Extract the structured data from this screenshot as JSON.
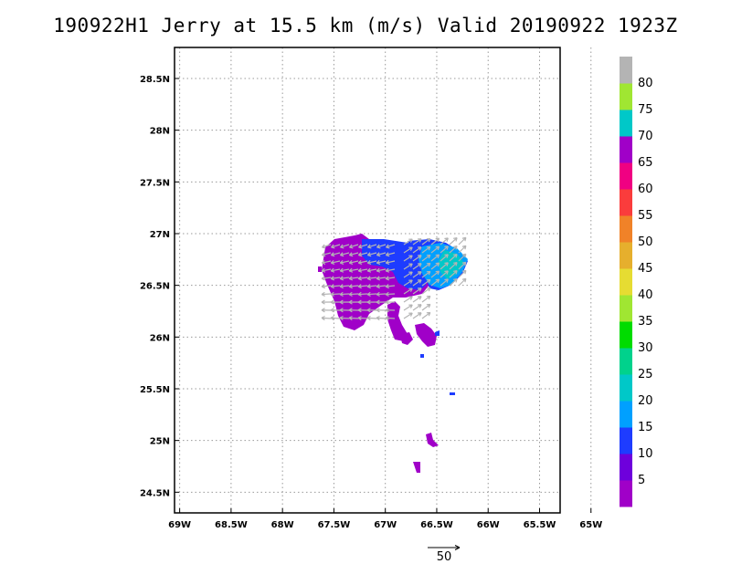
{
  "title": "190922H1  Jerry at 15.5 km (m/s) Valid 20190922  1923Z",
  "axes": {
    "x_ticks": [
      "69W",
      "68.5W",
      "68W",
      "67.5W",
      "67W",
      "66.5W",
      "66W",
      "65.5W",
      "65W"
    ],
    "y_ticks": [
      "24.5N",
      "25N",
      "25.5N",
      "26N",
      "26.5N",
      "27N",
      "27.5N",
      "28N",
      "28.5N"
    ],
    "x_range_lon": [
      -69.05,
      -65.3
    ],
    "y_range_lat": [
      24.3,
      28.8
    ],
    "grid": true
  },
  "colorbar": {
    "labels": [
      "5",
      "10",
      "15",
      "20",
      "25",
      "30",
      "35",
      "40",
      "45",
      "50",
      "55",
      "60",
      "65",
      "70",
      "75",
      "80"
    ],
    "colors": [
      "#a000c8",
      "#6e00dc",
      "#1e3cff",
      "#00a0ff",
      "#00c8c8",
      "#00d28c",
      "#00dc00",
      "#a0e632",
      "#e6dc32",
      "#e6af2d",
      "#f08228",
      "#fa3c3c",
      "#f00082",
      "#a000c8",
      "#00c8c8",
      "#a0e632",
      "#b4b4b4"
    ]
  },
  "reference_vector": {
    "label": "50"
  },
  "colors": {
    "purple": "#a000c8",
    "blue": "#1e3cff",
    "lightblue": "#00a0ff",
    "cyan": "#00c8c8",
    "arrow": "#b4b4b4"
  }
}
